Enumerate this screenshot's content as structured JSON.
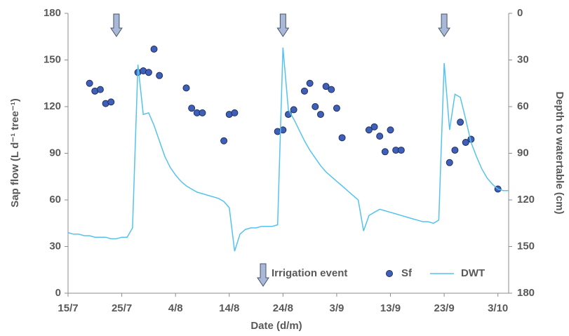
{
  "chart_data": {
    "type": "scatter-line",
    "xlabel": "Date (d/m)",
    "ylabel": "Sap flow (L d⁻¹ tree⁻¹)",
    "y2label": "Depth to watertable (cm)",
    "xlim": [
      "15/7",
      "5/10"
    ],
    "xticks": [
      "15/7",
      "25/7",
      "4/8",
      "14/8",
      "24/8",
      "3/9",
      "13/9",
      "23/9",
      "3/10"
    ],
    "ylim": [
      0,
      180
    ],
    "yticks": [
      0,
      30,
      60,
      90,
      120,
      150,
      180
    ],
    "y2lim": [
      180,
      0
    ],
    "y2ticks": [
      0,
      30,
      60,
      90,
      120,
      150,
      180
    ],
    "irrigation": {
      "name": "Irrigation event",
      "x": [
        "24/7",
        "24/8",
        "23/9"
      ]
    },
    "series": [
      {
        "name": "Sf",
        "kind": "scatter",
        "axis": "y",
        "color": "#3f5fb8",
        "x": [
          "19/7",
          "20/7",
          "21/7",
          "22/7",
          "23/7",
          "28/7",
          "29/7",
          "30/7",
          "31/7",
          "1/8",
          "6/8",
          "7/8",
          "8/8",
          "9/8",
          "13/8",
          "14/8",
          "15/8",
          "23/8",
          "24/8",
          "25/8",
          "26/8",
          "28/8",
          "29/8",
          "30/8",
          "31/8",
          "1/9",
          "2/9",
          "3/9",
          "4/9",
          "9/9",
          "10/9",
          "11/9",
          "12/9",
          "13/9",
          "14/9",
          "15/9",
          "24/9",
          "25/9",
          "26/9",
          "27/9",
          "28/9",
          "3/10"
        ],
        "values": [
          135,
          130,
          131,
          122,
          123,
          142,
          143,
          142,
          157,
          140,
          132,
          119,
          116,
          116,
          98,
          115,
          116,
          104,
          105,
          115,
          118,
          130,
          135,
          120,
          115,
          133,
          131,
          119,
          100,
          105,
          107,
          101,
          91,
          105,
          92,
          92,
          84,
          92,
          110,
          97,
          99,
          67
        ]
      },
      {
        "name": "DWT",
        "kind": "line",
        "axis": "y2",
        "color": "#55c3ee",
        "x": [
          "15/7",
          "16/7",
          "17/7",
          "18/7",
          "19/7",
          "20/7",
          "21/7",
          "22/7",
          "23/7",
          "24/7",
          "25/7",
          "26/7",
          "27/7",
          "28/7",
          "29/7",
          "30/7",
          "31/7",
          "1/8",
          "2/8",
          "3/8",
          "4/8",
          "5/8",
          "6/8",
          "7/8",
          "8/8",
          "9/8",
          "10/8",
          "11/8",
          "12/8",
          "13/8",
          "14/8",
          "15/8",
          "16/8",
          "17/8",
          "18/8",
          "19/8",
          "20/8",
          "21/8",
          "22/8",
          "23/8",
          "24/8",
          "25/8",
          "26/8",
          "27/8",
          "28/8",
          "29/8",
          "30/8",
          "31/8",
          "1/9",
          "2/9",
          "3/9",
          "4/9",
          "5/9",
          "6/9",
          "7/9",
          "8/9",
          "9/9",
          "10/9",
          "11/9",
          "12/9",
          "13/9",
          "14/9",
          "15/9",
          "16/9",
          "17/9",
          "18/9",
          "19/9",
          "20/9",
          "21/9",
          "22/9",
          "23/9",
          "24/9",
          "25/9",
          "26/9",
          "27/9",
          "28/9",
          "29/9",
          "30/9",
          "1/10",
          "2/10",
          "3/10",
          "4/10",
          "5/10"
        ],
        "values": [
          141,
          142,
          142,
          143,
          143,
          144,
          144,
          144,
          145,
          145,
          144,
          144,
          138,
          33,
          65,
          64,
          72,
          82,
          92,
          99,
          104,
          108,
          111,
          113,
          115,
          116,
          117,
          118,
          119,
          121,
          125,
          153,
          142,
          139,
          138,
          138,
          137,
          137,
          137,
          136,
          22,
          62,
          68,
          75,
          82,
          88,
          93,
          98,
          102,
          105,
          108,
          111,
          114,
          117,
          120,
          140,
          130,
          128,
          126,
          127,
          128,
          129,
          130,
          131,
          132,
          133,
          134,
          134,
          135,
          133,
          32,
          75,
          52,
          54,
          68,
          83,
          92,
          100,
          106,
          110,
          113,
          114,
          114
        ]
      }
    ]
  }
}
